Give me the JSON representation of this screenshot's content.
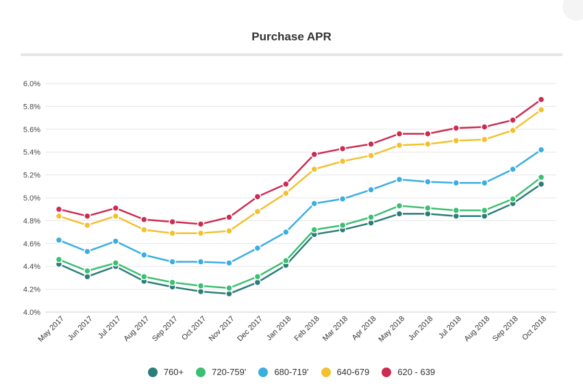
{
  "chart_data": {
    "type": "line",
    "title": "Purchase APR",
    "xlabel": "",
    "ylabel": "",
    "ylim": [
      4.0,
      6.0
    ],
    "yticks": [
      "4.0%",
      "4.2%",
      "4.4%",
      "4.6%",
      "4.8%",
      "5.0%",
      "5.2%",
      "5.4%",
      "5.6%",
      "5.8%",
      "6.0%"
    ],
    "grid": true,
    "legend_position": "bottom",
    "categories": [
      "May 2017",
      "Jun 2017",
      "Jul 2017",
      "Aug 2017",
      "Sep 2017",
      "Oct 2017",
      "Nov 2017",
      "Dec 2017",
      "Jan 2018",
      "Feb 2018",
      "Mar 2018",
      "Apr 2018",
      "May 2018",
      "Jun 2018",
      "Jul 2018",
      "Aug 2018",
      "Sep 2018",
      "Oct 2018"
    ],
    "series": [
      {
        "name": "760+",
        "color": "#2a7d78",
        "values": [
          4.42,
          4.31,
          4.4,
          4.27,
          4.22,
          4.18,
          4.16,
          4.26,
          4.41,
          4.68,
          4.72,
          4.78,
          4.86,
          4.86,
          4.84,
          4.84,
          4.95,
          5.12
        ]
      },
      {
        "name": "720-759'",
        "color": "#3cbf72",
        "values": [
          4.46,
          4.36,
          4.43,
          4.31,
          4.26,
          4.23,
          4.21,
          4.31,
          4.45,
          4.72,
          4.76,
          4.83,
          4.93,
          4.91,
          4.89,
          4.89,
          4.99,
          5.18
        ]
      },
      {
        "name": "680-719'",
        "color": "#3aaee0",
        "values": [
          4.63,
          4.53,
          4.62,
          4.5,
          4.44,
          4.44,
          4.43,
          4.56,
          4.7,
          4.95,
          4.99,
          5.07,
          5.16,
          5.14,
          5.13,
          5.13,
          5.25,
          5.42
        ]
      },
      {
        "name": "640-679",
        "color": "#f3c02f",
        "values": [
          4.84,
          4.76,
          4.84,
          4.72,
          4.69,
          4.69,
          4.71,
          4.88,
          5.04,
          5.25,
          5.32,
          5.37,
          5.46,
          5.47,
          5.5,
          5.51,
          5.59,
          5.77
        ]
      },
      {
        "name": "620 - 639",
        "color": "#cc2c51",
        "values": [
          4.9,
          4.84,
          4.91,
          4.81,
          4.79,
          4.77,
          4.83,
          5.01,
          5.12,
          5.38,
          5.43,
          5.47,
          5.56,
          5.56,
          5.61,
          5.62,
          5.68,
          5.86
        ]
      }
    ]
  }
}
